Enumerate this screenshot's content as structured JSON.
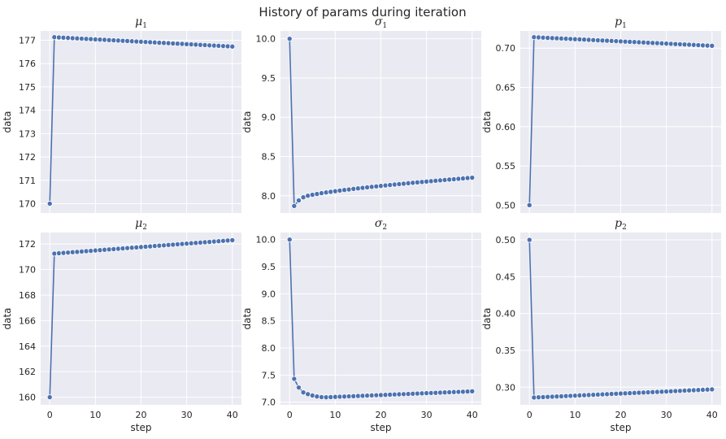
{
  "chart_data": {
    "title": "History of params during iteration",
    "panels": [
      {
        "type": "line",
        "title": "μ",
        "title_sub": "1",
        "xlabel": "",
        "ylabel": "data",
        "xlim": [
          -2,
          42
        ],
        "ylim": [
          169.6,
          177.4
        ],
        "xticks": [],
        "yticks": [
          170,
          171,
          172,
          173,
          174,
          175,
          176,
          177
        ],
        "start": 170,
        "first": 177.13,
        "last": 176.73
      },
      {
        "type": "line",
        "title": "σ",
        "title_sub": "1",
        "xlabel": "",
        "ylabel": "data",
        "xlim": [
          -2,
          42
        ],
        "ylim": [
          7.78,
          10.1
        ],
        "xticks": [],
        "yticks": [
          "8.0",
          "8.5",
          "9.0",
          "9.5",
          "10.0"
        ],
        "start": 10.0,
        "first": 7.87,
        "second": 7.94,
        "third": 7.98,
        "last": 8.23
      },
      {
        "type": "line",
        "title": "p",
        "title_sub": "1",
        "xlabel": "",
        "ylabel": "data",
        "xlim": [
          -2,
          42
        ],
        "ylim": [
          0.49,
          0.722
        ],
        "xticks": [],
        "yticks": [
          "0.50",
          "0.55",
          "0.60",
          "0.65",
          "0.70"
        ],
        "start": 0.5,
        "first": 0.714,
        "last": 0.703
      },
      {
        "type": "line",
        "title": "μ",
        "title_sub": "2",
        "xlabel": "step",
        "ylabel": "data",
        "xlim": [
          -2,
          42
        ],
        "ylim": [
          159.4,
          172.9
        ],
        "xticks": [
          0,
          10,
          20,
          30,
          40
        ],
        "yticks": [
          160,
          162,
          164,
          166,
          168,
          170,
          172
        ],
        "start": 160,
        "first": 171.25,
        "last": 172.3
      },
      {
        "type": "line",
        "title": "σ",
        "title_sub": "2",
        "xlabel": "step",
        "ylabel": "data",
        "xlim": [
          -2,
          42
        ],
        "ylim": [
          6.95,
          10.13
        ],
        "xticks": [
          0,
          10,
          20,
          30,
          40
        ],
        "yticks": [
          "7.0",
          "7.5",
          "8.0",
          "8.5",
          "9.0",
          "9.5",
          "10.0"
        ],
        "start": 10.0,
        "first": 7.43,
        "second": 7.27,
        "third": 7.18,
        "min": 7.09,
        "min_step": 8,
        "last": 7.2
      },
      {
        "type": "line",
        "title": "p",
        "title_sub": "2",
        "xlabel": "step",
        "ylabel": "data",
        "xlim": [
          -2,
          42
        ],
        "ylim": [
          0.276,
          0.51
        ],
        "xticks": [
          0,
          10,
          20,
          30,
          40
        ],
        "yticks": [
          "0.30",
          "0.35",
          "0.40",
          "0.45",
          "0.50"
        ],
        "start": 0.5,
        "first": 0.286,
        "last": 0.297
      }
    ]
  }
}
